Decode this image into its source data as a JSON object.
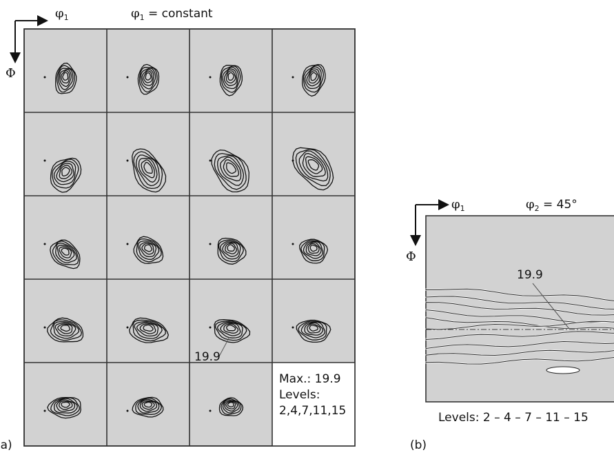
{
  "panel_a": {
    "axis_right_symbol": "φ",
    "axis_right_sub": "1",
    "axis_down_symbol": "Φ",
    "title_symbol": "φ",
    "title_sub": "1",
    "title_rest": " = constant",
    "annotation": "19.9",
    "info_max": "Max.: 19.9",
    "info_levels_label": "Levels:",
    "info_levels_values": "2,4,7,11,15",
    "panel_label": "(a)",
    "fill_color": "#d2d2d2"
  },
  "panel_b": {
    "axis_right_symbol": "φ",
    "axis_right_sub": "1",
    "axis_down_symbol": "Φ",
    "title_symbol": "φ",
    "title_sub": "2",
    "title_rest": " = 45°",
    "annotation": "19.9",
    "levels_text": "Levels: 2 – 4 – 7 – 11 – 15",
    "panel_label": "(b)",
    "fill_color": "#d2d2d2"
  }
}
